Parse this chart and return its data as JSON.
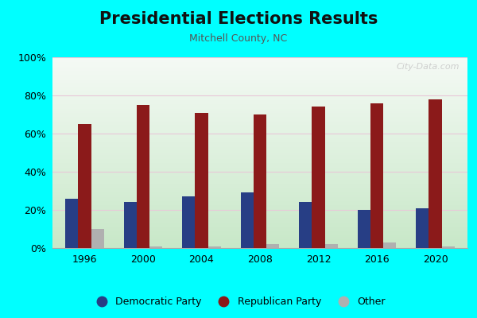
{
  "title": "Presidential Elections Results",
  "subtitle": "Mitchell County, NC",
  "years": [
    1996,
    2000,
    2004,
    2008,
    2012,
    2016,
    2020
  ],
  "democratic": [
    26,
    24,
    27,
    29,
    24,
    20,
    21
  ],
  "republican": [
    65,
    75,
    71,
    70,
    74,
    76,
    78
  ],
  "other": [
    10,
    1,
    1,
    2,
    2,
    3,
    1
  ],
  "dem_color": "#273e85",
  "rep_color": "#8b1a1a",
  "other_color": "#b0b0b0",
  "bg_outer": "#00ffff",
  "ylim": [
    0,
    100
  ],
  "yticks": [
    0,
    20,
    40,
    60,
    80,
    100
  ],
  "ytick_labels": [
    "0%",
    "20%",
    "40%",
    "60%",
    "80%",
    "100%"
  ],
  "watermark": "City-Data.com",
  "bar_width": 0.22,
  "title_fontsize": 15,
  "subtitle_fontsize": 9,
  "legend_fontsize": 9,
  "tick_fontsize": 9
}
